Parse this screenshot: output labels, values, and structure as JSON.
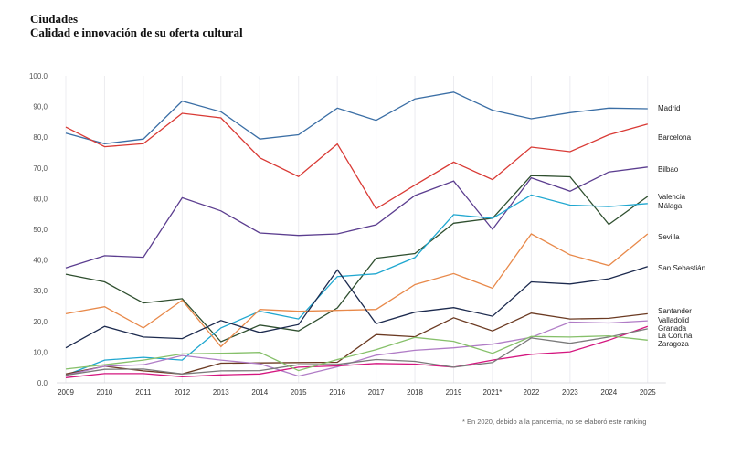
{
  "chart_data": {
    "type": "line",
    "title": "Ciudades",
    "subtitle": "Calidad e innovación de su oferta cultural",
    "xlabel": "",
    "ylabel": "",
    "ylim": [
      0,
      100
    ],
    "yticks": [
      "0,0",
      "10,0",
      "20,0",
      "30,0",
      "40,0",
      "50,0",
      "60,0",
      "70,0",
      "80,0",
      "90,0",
      "100,0"
    ],
    "ytick_values": [
      0,
      10,
      20,
      30,
      40,
      50,
      60,
      70,
      80,
      90,
      100
    ],
    "categories": [
      "2009",
      "2010",
      "2011",
      "2012",
      "2013",
      "2014",
      "2015",
      "2016",
      "2017",
      "2018",
      "2019",
      "2021*",
      "2022",
      "2023",
      "2024",
      "2025"
    ],
    "grid": "vertical",
    "legend": "right (end-of-line labels)",
    "footnote": "* En 2020, debido a la pandemia, no se elaboró este ranking",
    "series": [
      {
        "name": "Madrid",
        "color": "#3a6ea5",
        "values": [
          81.3,
          77.9,
          79.4,
          91.8,
          88.3,
          79.4,
          80.8,
          89.5,
          85.5,
          92.5,
          94.7,
          88.8,
          86.0,
          88.0,
          89.5,
          89.3
        ]
      },
      {
        "name": "Barcelona",
        "color": "#d93a35",
        "values": [
          83.3,
          76.9,
          77.9,
          87.8,
          86.3,
          73.3,
          67.2,
          77.8,
          56.7,
          64.4,
          71.9,
          66.2,
          76.8,
          75.3,
          80.8,
          84.3
        ]
      },
      {
        "name": "Bilbao",
        "color": "#5b3d8f",
        "values": [
          37.4,
          41.4,
          40.9,
          60.3,
          56.0,
          48.8,
          48.0,
          48.5,
          51.5,
          61.0,
          65.7,
          50.0,
          66.8,
          62.4,
          68.7,
          70.3
        ]
      },
      {
        "name": "Valencia",
        "color": "#2f4f2f",
        "values": [
          35.4,
          32.9,
          26.0,
          27.4,
          13.4,
          18.8,
          16.9,
          24.4,
          40.6,
          42.1,
          52.0,
          53.6,
          67.5,
          67.1,
          51.6,
          60.7
        ]
      },
      {
        "name": "Málaga",
        "color": "#1fa7d0",
        "values": [
          2.5,
          7.4,
          8.3,
          7.4,
          17.9,
          23.3,
          20.8,
          34.6,
          35.5,
          40.8,
          54.8,
          53.6,
          61.2,
          57.9,
          57.4,
          58.4
        ]
      },
      {
        "name": "Sevilla",
        "color": "#e8894a",
        "values": [
          22.5,
          24.8,
          17.9,
          26.9,
          11.8,
          23.9,
          23.3,
          23.6,
          23.9,
          32.0,
          35.6,
          30.8,
          48.5,
          41.7,
          38.2,
          48.5
        ]
      },
      {
        "name": "San Sebastián",
        "color": "#1c2a4e",
        "values": [
          11.4,
          18.4,
          14.9,
          14.4,
          20.3,
          16.4,
          19.0,
          36.8,
          19.3,
          23.0,
          24.5,
          21.7,
          32.9,
          32.2,
          33.9,
          37.9
        ]
      },
      {
        "name": "Santander",
        "color": "#6b3a22",
        "values": [
          2.9,
          5.4,
          3.9,
          2.9,
          6.4,
          6.5,
          6.6,
          6.7,
          15.7,
          15.0,
          21.2,
          16.9,
          22.7,
          20.8,
          21.0,
          22.5
        ]
      },
      {
        "name": "Valladolid",
        "color": "#b07cc6",
        "values": [
          2.5,
          5.4,
          5.9,
          8.9,
          7.4,
          6.2,
          2.2,
          5.2,
          9.0,
          10.6,
          11.4,
          12.6,
          14.8,
          19.8,
          19.5,
          20.2
        ]
      },
      {
        "name": "Granada",
        "color": "#d4167f",
        "values": [
          1.7,
          3.0,
          3.0,
          2.0,
          2.6,
          2.9,
          5.1,
          5.5,
          6.3,
          6.1,
          5.1,
          7.4,
          9.3,
          10.1,
          13.9,
          18.4
        ]
      },
      {
        "name": "La Coruña",
        "color": "#7a7a7a",
        "values": [
          2.5,
          4.4,
          4.5,
          2.9,
          3.9,
          4.0,
          5.9,
          6.0,
          7.6,
          7.0,
          5.1,
          6.6,
          14.6,
          12.9,
          14.9,
          17.6
        ]
      },
      {
        "name": "Zaragoza",
        "color": "#86c06a",
        "values": [
          4.5,
          5.9,
          7.4,
          9.4,
          9.6,
          9.9,
          4.0,
          7.6,
          10.8,
          14.8,
          13.5,
          9.6,
          15.1,
          14.9,
          15.3,
          13.9
        ]
      }
    ]
  }
}
